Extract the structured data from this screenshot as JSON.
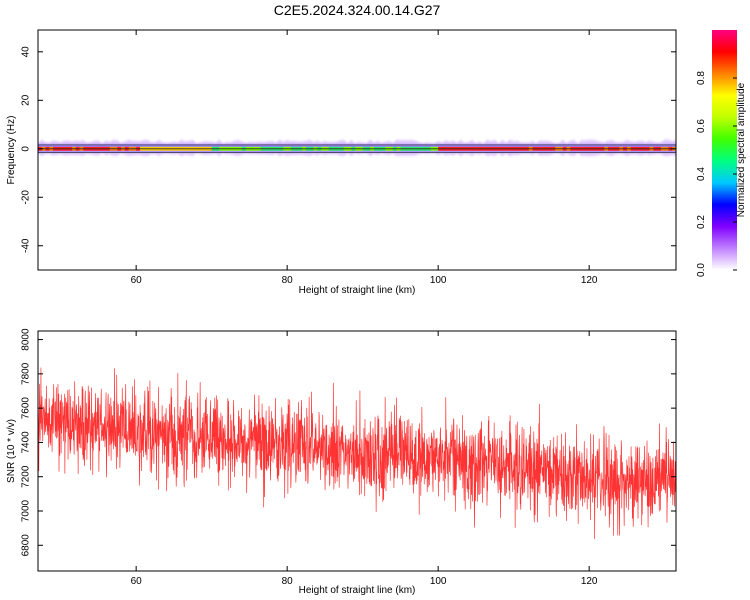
{
  "title": "C2E5.2024.324.00.14.G27",
  "chart_data": [
    {
      "type": "heatmap",
      "xlabel": "Height of straight line (km)",
      "ylabel": "Frequency (Hz)",
      "xlim": [
        47,
        131.5
      ],
      "ylim": [
        -50,
        49
      ],
      "xticks": [
        60,
        80,
        100,
        120
      ],
      "yticks": [
        -40,
        -20,
        0,
        20,
        40
      ],
      "colorbar": {
        "label": "Normalized spectral amplitude",
        "range": [
          0,
          1
        ],
        "ticks": [
          0.0,
          0.2,
          0.4,
          0.6,
          0.8
        ],
        "colors": [
          "#ffffff",
          "#c080ff",
          "#8000ff",
          "#0000ff",
          "#00c8ff",
          "#00ff80",
          "#40ff00",
          "#c0ff00",
          "#ffff00",
          "#ff8000",
          "#ff0000",
          "#ff0080"
        ]
      },
      "band": {
        "center_hz": 0,
        "core_halfwidth_hz": 0.8,
        "outer_halfwidth_hz": 3.0,
        "high_amplitude_ranges_km": [
          [
            47,
            60
          ],
          [
            100,
            131.5
          ]
        ],
        "lower_amplitude_range_km": [
          70,
          100
        ],
        "guide_line_hz": [
          0
        ]
      },
      "grid": false
    },
    {
      "type": "line",
      "xlabel": "Height of straight line (km)",
      "ylabel": "SNR (10 * v/v)",
      "xlim": [
        47,
        131.5
      ],
      "ylim": [
        6650,
        8050
      ],
      "xticks": [
        60,
        80,
        100,
        120
      ],
      "yticks": [
        6800,
        7000,
        7200,
        7400,
        7600,
        7800,
        8000
      ],
      "color": "#ff3333",
      "trend_x": [
        47,
        55,
        65,
        75,
        85,
        95,
        105,
        115,
        125,
        131.5
      ],
      "trend_y": [
        7540,
        7480,
        7430,
        7400,
        7350,
        7320,
        7280,
        7220,
        7170,
        7150
      ],
      "noise_amplitude": 220,
      "grid": false
    }
  ]
}
